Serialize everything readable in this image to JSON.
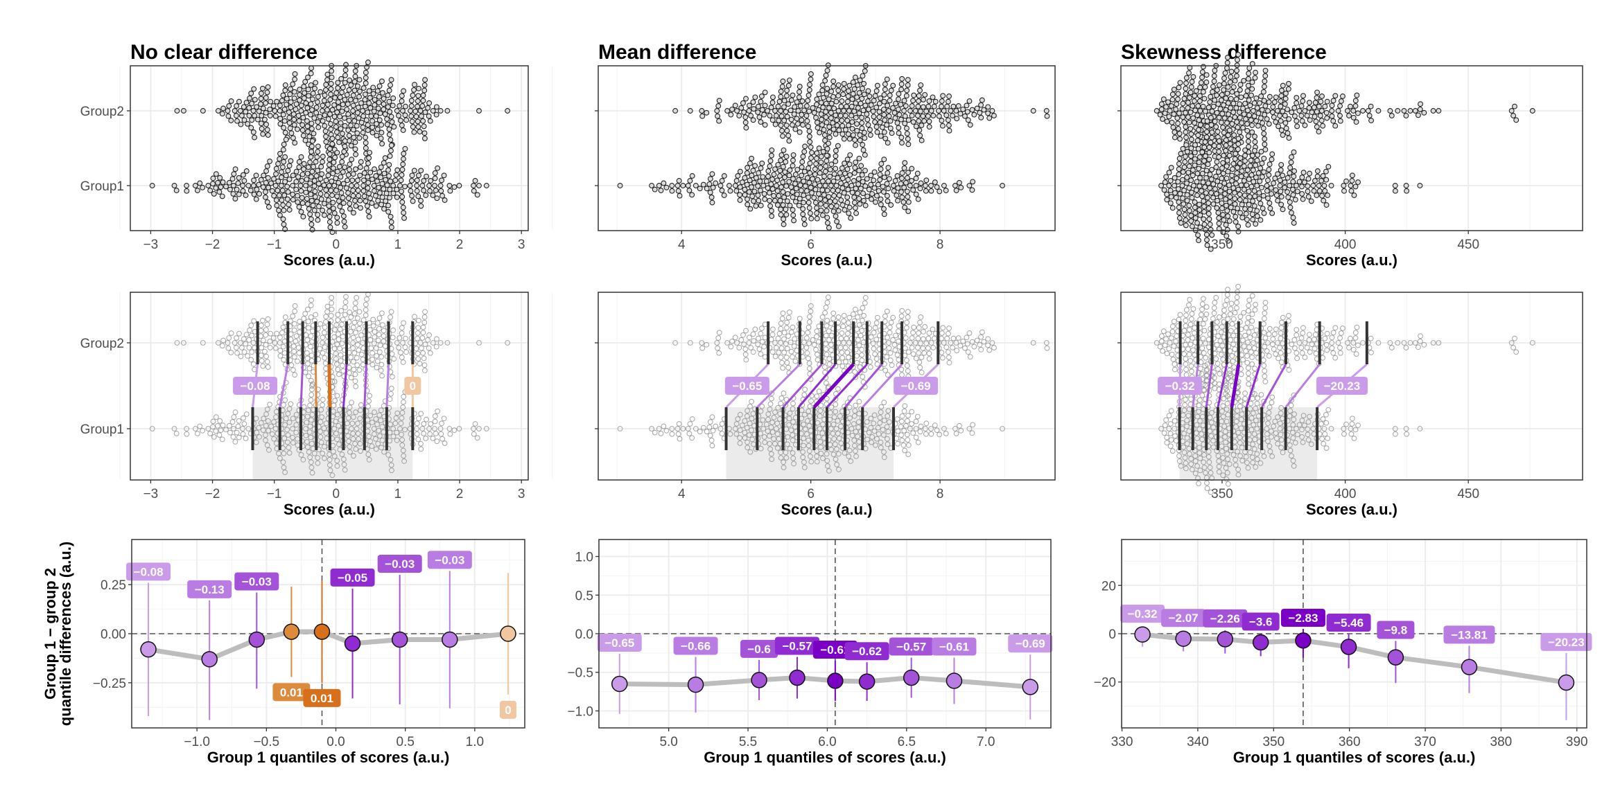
{
  "figure": {
    "palette": {
      "purple": [
        "#c99be9",
        "#b97ce2",
        "#a452d8",
        "#8f2bd0",
        "#7b00c6"
      ],
      "orange": [
        "#f0c7a1",
        "#e8a869",
        "#e29a52",
        "#dc8a3c",
        "#d6701a"
      ],
      "swarm_fill": "#dcdcdc",
      "quantile_line": "#333333",
      "trend_line": "#bdbdbd"
    }
  },
  "chart_data": [
    {
      "title": "No clear difference",
      "swarm": {
        "type": "scatter",
        "groups": [
          "Group2",
          "Group1"
        ],
        "xlabel": "Scores (a.u.)",
        "xlim": [
          -3.33,
          3.11
        ],
        "xticks": [
          -3,
          -2,
          -1,
          0,
          1,
          2,
          3
        ],
        "xtick_labels": [
          "−3",
          "−2",
          "−1",
          "0",
          "1",
          "2",
          "3"
        ]
      },
      "shift": {
        "group1_deciles": [
          -1.35,
          -0.91,
          -0.57,
          -0.32,
          -0.1,
          0.12,
          0.46,
          0.82,
          1.24
        ],
        "group2_deciles": [
          -1.27,
          -0.78,
          -0.54,
          -0.33,
          -0.11,
          0.17,
          0.49,
          0.85,
          1.24
        ],
        "end_labels": [
          "−0.08",
          "0"
        ]
      },
      "difference": {
        "type": "line",
        "xlabel": "Group 1 quantiles of scores (a.u.)",
        "ylabel": [
          "Group 1 − group 2",
          "quantile differences (a.u.)"
        ],
        "x": [
          -1.35,
          -0.91,
          -0.57,
          -0.32,
          -0.1,
          0.12,
          0.46,
          0.82,
          1.24
        ],
        "y": [
          -0.08,
          -0.13,
          -0.03,
          0.01,
          0.01,
          -0.05,
          -0.03,
          -0.03,
          0
        ],
        "ci_low": [
          -0.42,
          -0.44,
          -0.28,
          -0.22,
          -0.25,
          -0.33,
          -0.36,
          -0.38,
          -0.31
        ],
        "ci_high": [
          0.26,
          0.17,
          0.21,
          0.24,
          0.27,
          0.23,
          0.3,
          0.32,
          0.31
        ],
        "labels": [
          "−0.08",
          "−0.13",
          "−0.03",
          "0.01",
          "0.01",
          "−0.05",
          "−0.03",
          "−0.03",
          "0"
        ],
        "colors": [
          "#c99be9",
          "#b97ce2",
          "#a452d8",
          "#dc8a3c",
          "#d6701a",
          "#8f2bd0",
          "#a452d8",
          "#b97ce2",
          "#f0c7a1"
        ],
        "xlim": [
          -1.47,
          1.36
        ],
        "ylim": [
          -0.48,
          0.48
        ],
        "xticks": [
          -1.0,
          -0.5,
          0.0,
          0.5,
          1.0
        ],
        "xtick_labels": [
          "−1.0",
          "−0.5",
          "0.0",
          "0.5",
          "1.0"
        ],
        "yticks": [
          0.25,
          0.0,
          -0.25
        ],
        "ytick_labels": [
          "0.25",
          "0.00",
          "−0.25"
        ],
        "hline": 0,
        "vline": -0.1
      }
    },
    {
      "title": "Mean difference",
      "swarm": {
        "type": "scatter",
        "groups": [
          "Group2",
          "Group1"
        ],
        "xlabel": "Scores (a.u.)",
        "xlim": [
          2.71,
          9.78
        ],
        "xticks": [
          4,
          6,
          8
        ],
        "xtick_labels": [
          "4",
          "6",
          "8"
        ]
      },
      "shift": {
        "group1_deciles": [
          4.69,
          5.17,
          5.57,
          5.81,
          6.05,
          6.25,
          6.53,
          6.8,
          7.28
        ],
        "group2_deciles": [
          5.34,
          5.83,
          6.17,
          6.38,
          6.66,
          6.87,
          7.1,
          7.41,
          7.97
        ],
        "end_labels": [
          "−0.65",
          "−0.69"
        ]
      },
      "difference": {
        "type": "line",
        "xlabel": "Group 1 quantiles of scores (a.u.)",
        "x": [
          4.69,
          5.17,
          5.57,
          5.81,
          6.05,
          6.25,
          6.53,
          6.8,
          7.28
        ],
        "y": [
          -0.65,
          -0.66,
          -0.6,
          -0.57,
          -0.61,
          -0.62,
          -0.57,
          -0.61,
          -0.69
        ],
        "ci_low": [
          -1.04,
          -1.02,
          -0.86,
          -0.84,
          -0.87,
          -0.87,
          -0.83,
          -0.91,
          -1.11
        ],
        "ci_high": [
          -0.26,
          -0.3,
          -0.34,
          -0.3,
          -0.35,
          -0.37,
          -0.31,
          -0.31,
          -0.27
        ],
        "labels": [
          "−0.65",
          "−0.66",
          "−0.6",
          "−0.57",
          "−0.61",
          "−0.62",
          "−0.57",
          "−0.61",
          "−0.69"
        ],
        "colors": [
          "#c99be9",
          "#b97ce2",
          "#a452d8",
          "#8f2bd0",
          "#7b00c6",
          "#8f2bd0",
          "#a452d8",
          "#b97ce2",
          "#c99be9"
        ],
        "xlim": [
          4.56,
          7.41
        ],
        "ylim": [
          -1.22,
          1.22
        ],
        "xticks": [
          5.0,
          5.5,
          6.0,
          6.5,
          7.0
        ],
        "xtick_labels": [
          "5.0",
          "5.5",
          "6.0",
          "6.5",
          "7.0"
        ],
        "yticks": [
          1.0,
          0.5,
          0.0,
          -0.5,
          -1.0
        ],
        "ytick_labels": [
          "1.0",
          "0.5",
          "0.0",
          "−0.5",
          "−1.0"
        ],
        "hline": 0,
        "vline": 6.05
      }
    },
    {
      "title": "Skewness difference",
      "swarm": {
        "type": "scatter",
        "groups": [
          "Group2",
          "Group1"
        ],
        "xlabel": "Scores (a.u.)",
        "xlim": [
          308.9,
          496.4
        ],
        "xticks": [
          350,
          400,
          450
        ],
        "xtick_labels": [
          "350",
          "400",
          "450"
        ]
      },
      "shift": {
        "group1_deciles": [
          332.7,
          338.1,
          343.6,
          348.3,
          353.9,
          359.9,
          366.1,
          375.8,
          388.6
        ],
        "group2_deciles": [
          333.0,
          340.2,
          345.9,
          351.9,
          356.7,
          365.4,
          375.9,
          389.6,
          408.8
        ],
        "end_labels": [
          "−0.32",
          "−20.23"
        ]
      },
      "difference": {
        "type": "line",
        "xlabel": "Group 1 quantiles of scores (a.u.)",
        "x": [
          332.7,
          338.1,
          343.6,
          348.3,
          353.9,
          359.9,
          366.1,
          375.8,
          388.6
        ],
        "y": [
          -0.32,
          -2.07,
          -2.26,
          -3.6,
          -2.83,
          -5.46,
          -9.8,
          -13.81,
          -20.23
        ],
        "ci_low": [
          -5.4,
          -7.3,
          -8.2,
          -9.3,
          -10.0,
          -14.3,
          -20.4,
          -24.6,
          -35.8
        ],
        "ci_high": [
          3.0,
          1.0,
          1.5,
          0.0,
          2.0,
          0.0,
          -3.0,
          -5.0,
          -8.0
        ],
        "labels": [
          "−0.32",
          "−2.07",
          "−2.26",
          "−3.6",
          "−2.83",
          "−5.46",
          "−9.8",
          "−13.81",
          "−20.23"
        ],
        "colors": [
          "#c99be9",
          "#b97ce2",
          "#a452d8",
          "#8f2bd0",
          "#7b00c6",
          "#8f2bd0",
          "#a452d8",
          "#b97ce2",
          "#c99be9"
        ],
        "xlim": [
          329.95,
          391.3
        ],
        "ylim": [
          -39,
          39
        ],
        "xticks": [
          330,
          340,
          350,
          360,
          370,
          380,
          390
        ],
        "xtick_labels": [
          "330",
          "340",
          "350",
          "360",
          "370",
          "380",
          "390"
        ],
        "yticks": [
          20,
          0,
          -20
        ],
        "ytick_labels": [
          "20",
          "0",
          "−20"
        ],
        "hline": 0,
        "vline": 353.9
      }
    }
  ]
}
